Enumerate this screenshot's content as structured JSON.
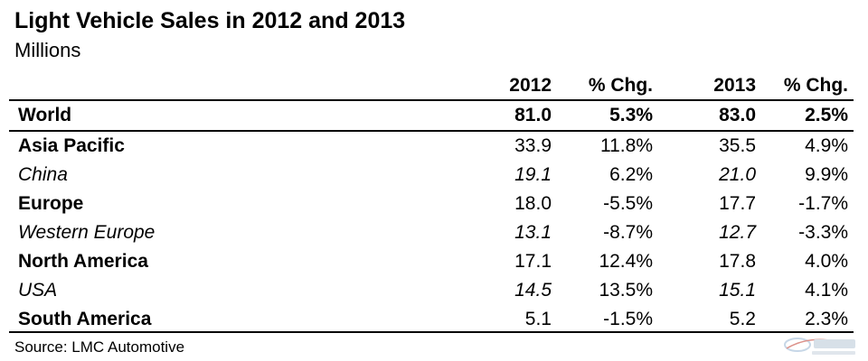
{
  "title": "Light Vehicle Sales in 2012 and 2013",
  "subtitle": "Millions",
  "source": "Source: LMC Automotive",
  "chart_data": {
    "type": "table",
    "title": "Light Vehicle Sales in 2012 and 2013",
    "unit": "Millions",
    "columns": [
      "",
      "2012",
      "% Chg.",
      "2013",
      "% Chg."
    ],
    "rows": [
      {
        "region": "World",
        "v2012": "81.0",
        "chg2012": "5.3%",
        "v2013": "83.0",
        "chg2013": "2.5%",
        "style": "bold"
      },
      {
        "region": "Asia Pacific",
        "v2012": "33.9",
        "chg2012": "11.8%",
        "v2013": "35.5",
        "chg2013": "4.9%",
        "style": "region"
      },
      {
        "region": "China",
        "v2012": "19.1",
        "chg2012": "6.2%",
        "v2013": "21.0",
        "chg2013": "9.9%",
        "style": "sub"
      },
      {
        "region": "Europe",
        "v2012": "18.0",
        "chg2012": "-5.5%",
        "v2013": "17.7",
        "chg2013": "-1.7%",
        "style": "region"
      },
      {
        "region": "Western Europe",
        "v2012": "13.1",
        "chg2012": "-8.7%",
        "v2013": "12.7",
        "chg2013": "-3.3%",
        "style": "sub"
      },
      {
        "region": "North America",
        "v2012": "17.1",
        "chg2012": "12.4%",
        "v2013": "17.8",
        "chg2013": "4.0%",
        "style": "region"
      },
      {
        "region": "USA",
        "v2012": "14.5",
        "chg2012": "13.5%",
        "v2013": "15.1",
        "chg2013": "4.1%",
        "style": "sub"
      },
      {
        "region": "South America",
        "v2012": "5.1",
        "chg2012": "-1.5%",
        "v2013": "5.2",
        "chg2013": "2.3%",
        "style": "region"
      }
    ]
  }
}
